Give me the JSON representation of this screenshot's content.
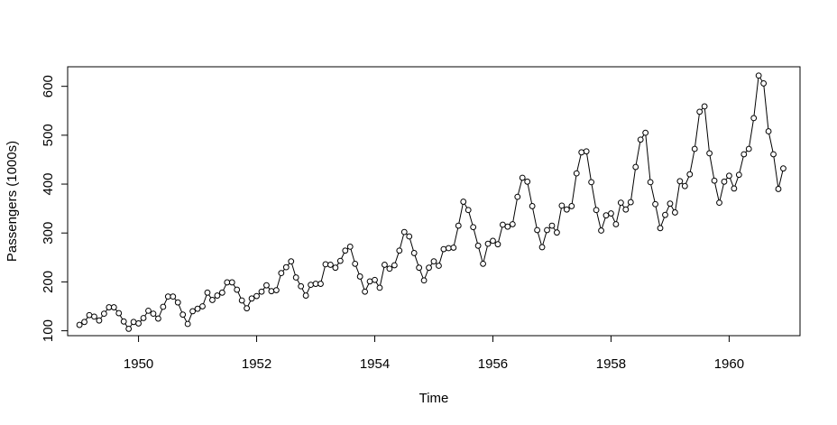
{
  "chart_data": {
    "type": "line",
    "markers": "open-circle",
    "xlabel": "Time",
    "ylabel": "Passengers (1000s)",
    "xlim": [
      1948.8,
      1961.2
    ],
    "ylim": [
      90,
      640
    ],
    "x_ticks": [
      1950,
      1952,
      1954,
      1956,
      1958,
      1960
    ],
    "x_tick_labels": [
      "1950",
      "1952",
      "1954",
      "1956",
      "1958",
      "1960"
    ],
    "y_ticks": [
      100,
      200,
      300,
      400,
      500,
      600
    ],
    "y_tick_labels": [
      "100",
      "200",
      "300",
      "400",
      "500",
      "600"
    ],
    "x_start": 1949,
    "x_step_months": 1,
    "series": [
      {
        "values": [
          112,
          118,
          132,
          129,
          121,
          135,
          148,
          148,
          136,
          119,
          104,
          118,
          115,
          126,
          141,
          135,
          125,
          149,
          170,
          170,
          158,
          133,
          114,
          140,
          145,
          150,
          178,
          163,
          172,
          178,
          199,
          199,
          184,
          162,
          146,
          166,
          171,
          180,
          193,
          181,
          183,
          218,
          230,
          242,
          209,
          191,
          172,
          194,
          196,
          196,
          236,
          235,
          229,
          243,
          264,
          272,
          237,
          211,
          180,
          201,
          204,
          188,
          235,
          227,
          234,
          264,
          302,
          293,
          259,
          229,
          203,
          229,
          242,
          233,
          267,
          269,
          270,
          315,
          364,
          347,
          312,
          274,
          237,
          278,
          284,
          277,
          317,
          313,
          318,
          374,
          413,
          405,
          355,
          306,
          271,
          306,
          315,
          301,
          356,
          348,
          355,
          422,
          465,
          467,
          404,
          347,
          305,
          336,
          340,
          318,
          362,
          348,
          363,
          435,
          491,
          505,
          404,
          359,
          310,
          337,
          360,
          342,
          406,
          396,
          420,
          472,
          548,
          559,
          463,
          407,
          362,
          405,
          417,
          391,
          419,
          461,
          472,
          535,
          622,
          606,
          508,
          461,
          390,
          432
        ]
      }
    ],
    "grid": false,
    "legend": "none"
  }
}
